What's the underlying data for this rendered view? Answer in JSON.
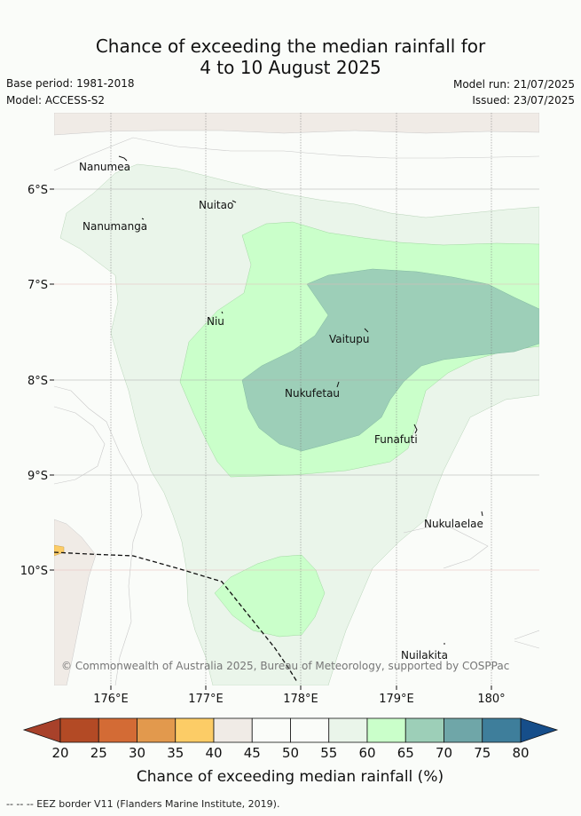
{
  "title_line1": "Chance of exceeding the median rainfall for",
  "title_line2": "4 to 10 August 2025",
  "base_period": "Base period: 1981-2018",
  "model": "Model: ACCESS-S2",
  "model_run": "Model run: 21/07/2025",
  "issued": "Issued: 23/07/2025",
  "map": {
    "lat_labels": [
      "6°S",
      "7°S",
      "8°S",
      "9°S",
      "10°S"
    ],
    "lon_labels": [
      "176°E",
      "177°E",
      "178°E",
      "179°E",
      "180°"
    ],
    "islands": [
      "Nanumea",
      "Nuitao",
      "Nanumanga",
      "Niu",
      "Vaitupu",
      "Nukufetau",
      "Funafuti",
      "Nukulaelae",
      "Nuilakita"
    ],
    "copyright": "© Commonwealth of Australia 2025, Bureau of Meteorology, supported by COSPPac"
  },
  "colorbar": {
    "ticks": [
      "20",
      "25",
      "30",
      "35",
      "40",
      "45",
      "50",
      "55",
      "60",
      "65",
      "70",
      "75",
      "80"
    ],
    "colors": [
      "#b34a25",
      "#d36b35",
      "#e2994d",
      "#fccc66",
      "#f0ebe6",
      "#fafcf9",
      "#fafcf9",
      "#eaf5ea",
      "#caffca",
      "#9dcfb8",
      "#6fa6a8",
      "#3e7e9b"
    ],
    "under_color": "#a8412a",
    "over_color": "#164e8a",
    "label": "Chance of exceeding median rainfall (%)"
  },
  "footer": "--  --  -- EEZ border V11 (Flanders Marine Institute, 2019)."
}
